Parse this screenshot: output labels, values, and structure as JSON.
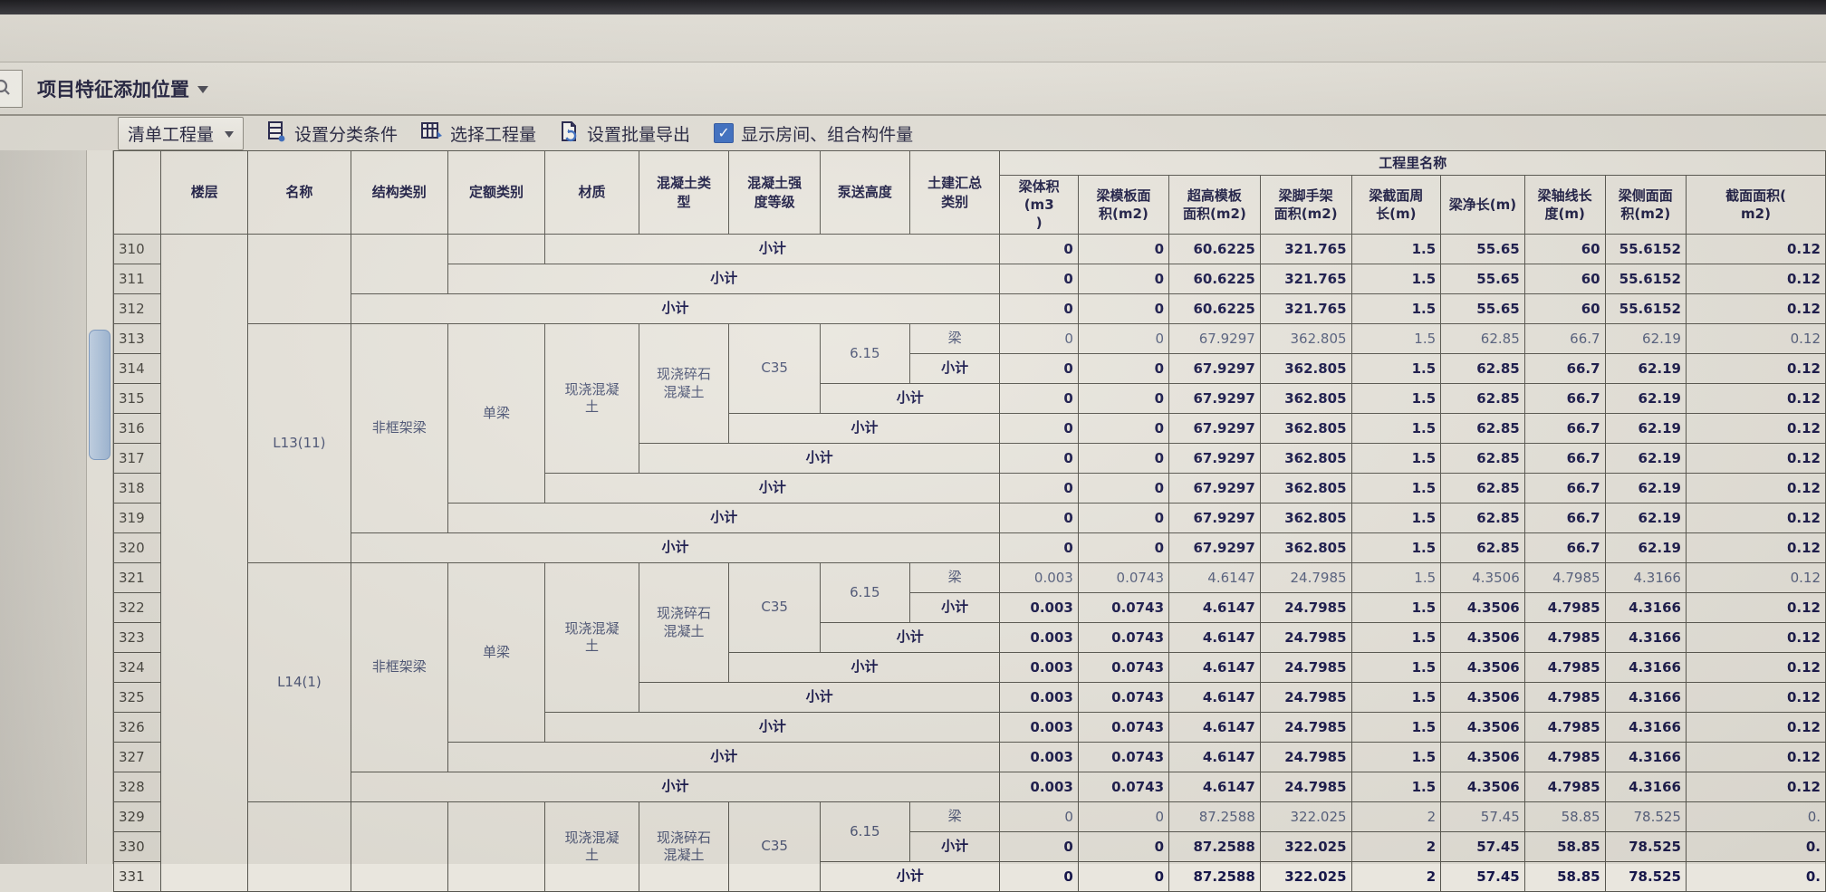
{
  "colors": {
    "accent_blue": "#3a6cc0",
    "text_navy": "#1b1b4e"
  },
  "top_bar": {
    "feature_dropdown_label": "项目特征添加位置"
  },
  "toolbar": {
    "quantity_type_button": "清单工程量",
    "set_classify_button": "设置分类条件",
    "select_quantity_button": "选择工程量",
    "batch_export_button": "设置批量导出",
    "show_rooms_checkbox_label": "显示房间、组合构件量",
    "show_rooms_checked": true,
    "check_glyph": "✓"
  },
  "table": {
    "group_header": "工程里名称",
    "columns": [
      "楼层",
      "名称",
      "结构类别",
      "定额类别",
      "材质",
      "混凝土类\n型",
      "混凝土强\n度等级",
      "泵送高度",
      "土建汇总\n类别",
      "梁体积(m3\n)",
      "梁模板面\n积(m2)",
      "超高模板\n面积(m2)",
      "梁脚手架\n面积(m2)",
      "梁截面周\n长(m)",
      "梁净长(m)",
      "梁轴线长\n度(m)",
      "梁侧面面\n积(m2)",
      "截面面积(\nm2)"
    ],
    "rows": [
      {
        "num": "310",
        "v": "bold",
        "cells": [
          {
            "c": 0,
            "rs": 22,
            "t": ""
          },
          {
            "c": 1,
            "rs": 3,
            "t": ""
          },
          {
            "c": 2,
            "rs": 2,
            "t": ""
          },
          {
            "c": 3,
            "t": ""
          },
          {
            "c": 4,
            "cs": 5,
            "t": "小计"
          }
        ],
        "values": [
          "0",
          "0",
          "60.6225",
          "321.765",
          "1.5",
          "55.65",
          "60",
          "55.6152",
          "0.12"
        ]
      },
      {
        "num": "311",
        "v": "bold",
        "cells": [
          {
            "c": 3,
            "cs": 6,
            "t": "小计"
          }
        ],
        "values": [
          "0",
          "0",
          "60.6225",
          "321.765",
          "1.5",
          "55.65",
          "60",
          "55.6152",
          "0.12"
        ]
      },
      {
        "num": "312",
        "v": "bold",
        "cells": [
          {
            "c": 2,
            "cs": 7,
            "t": "小计"
          }
        ],
        "values": [
          "0",
          "0",
          "60.6225",
          "321.765",
          "1.5",
          "55.65",
          "60",
          "55.6152",
          "0.12"
        ]
      },
      {
        "num": "313",
        "v": "light",
        "cells": [
          {
            "c": 1,
            "rs": 8,
            "t": "L13(11)"
          },
          {
            "c": 2,
            "rs": 7,
            "t": "非框架梁"
          },
          {
            "c": 3,
            "rs": 6,
            "t": "单梁"
          },
          {
            "c": 4,
            "rs": 5,
            "t": "现浇混凝\n土"
          },
          {
            "c": 5,
            "rs": 4,
            "t": "现浇碎石\n混凝土"
          },
          {
            "c": 6,
            "rs": 3,
            "t": "C35"
          },
          {
            "c": 7,
            "rs": 2,
            "t": "6.15"
          },
          {
            "c": 8,
            "t": "梁"
          }
        ],
        "values": [
          "0",
          "0",
          "67.9297",
          "362.805",
          "1.5",
          "62.85",
          "66.7",
          "62.19",
          "0.12"
        ]
      },
      {
        "num": "314",
        "v": "bold",
        "cells": [
          {
            "c": 8,
            "t": "小计"
          }
        ],
        "values": [
          "0",
          "0",
          "67.9297",
          "362.805",
          "1.5",
          "62.85",
          "66.7",
          "62.19",
          "0.12"
        ]
      },
      {
        "num": "315",
        "v": "bold",
        "cells": [
          {
            "c": 7,
            "cs": 2,
            "t": "小计"
          }
        ],
        "values": [
          "0",
          "0",
          "67.9297",
          "362.805",
          "1.5",
          "62.85",
          "66.7",
          "62.19",
          "0.12"
        ]
      },
      {
        "num": "316",
        "v": "bold",
        "cells": [
          {
            "c": 6,
            "cs": 3,
            "t": "小计"
          }
        ],
        "values": [
          "0",
          "0",
          "67.9297",
          "362.805",
          "1.5",
          "62.85",
          "66.7",
          "62.19",
          "0.12"
        ]
      },
      {
        "num": "317",
        "v": "bold",
        "cells": [
          {
            "c": 5,
            "cs": 4,
            "t": "小计"
          }
        ],
        "values": [
          "0",
          "0",
          "67.9297",
          "362.805",
          "1.5",
          "62.85",
          "66.7",
          "62.19",
          "0.12"
        ]
      },
      {
        "num": "318",
        "v": "bold",
        "cells": [
          {
            "c": 4,
            "cs": 5,
            "t": "小计"
          }
        ],
        "values": [
          "0",
          "0",
          "67.9297",
          "362.805",
          "1.5",
          "62.85",
          "66.7",
          "62.19",
          "0.12"
        ]
      },
      {
        "num": "319",
        "v": "bold",
        "cells": [
          {
            "c": 3,
            "cs": 6,
            "t": "小计"
          }
        ],
        "values": [
          "0",
          "0",
          "67.9297",
          "362.805",
          "1.5",
          "62.85",
          "66.7",
          "62.19",
          "0.12"
        ]
      },
      {
        "num": "320",
        "v": "bold",
        "cells": [
          {
            "c": 2,
            "cs": 7,
            "t": "小计"
          }
        ],
        "values": [
          "0",
          "0",
          "67.9297",
          "362.805",
          "1.5",
          "62.85",
          "66.7",
          "62.19",
          "0.12"
        ]
      },
      {
        "num": "321",
        "v": "light",
        "cells": [
          {
            "c": 1,
            "rs": 8,
            "t": "L14(1)"
          },
          {
            "c": 2,
            "rs": 7,
            "t": "非框架梁"
          },
          {
            "c": 3,
            "rs": 6,
            "t": "单梁"
          },
          {
            "c": 4,
            "rs": 5,
            "t": "现浇混凝\n土"
          },
          {
            "c": 5,
            "rs": 4,
            "t": "现浇碎石\n混凝土"
          },
          {
            "c": 6,
            "rs": 3,
            "t": "C35"
          },
          {
            "c": 7,
            "rs": 2,
            "t": "6.15"
          },
          {
            "c": 8,
            "t": "梁"
          }
        ],
        "values": [
          "0.003",
          "0.0743",
          "4.6147",
          "24.7985",
          "1.5",
          "4.3506",
          "4.7985",
          "4.3166",
          "0.12"
        ]
      },
      {
        "num": "322",
        "v": "bold",
        "cells": [
          {
            "c": 8,
            "t": "小计"
          }
        ],
        "values": [
          "0.003",
          "0.0743",
          "4.6147",
          "24.7985",
          "1.5",
          "4.3506",
          "4.7985",
          "4.3166",
          "0.12"
        ]
      },
      {
        "num": "323",
        "v": "bold",
        "cells": [
          {
            "c": 7,
            "cs": 2,
            "t": "小计"
          }
        ],
        "values": [
          "0.003",
          "0.0743",
          "4.6147",
          "24.7985",
          "1.5",
          "4.3506",
          "4.7985",
          "4.3166",
          "0.12"
        ]
      },
      {
        "num": "324",
        "v": "bold",
        "cells": [
          {
            "c": 6,
            "cs": 3,
            "t": "小计"
          }
        ],
        "values": [
          "0.003",
          "0.0743",
          "4.6147",
          "24.7985",
          "1.5",
          "4.3506",
          "4.7985",
          "4.3166",
          "0.12"
        ]
      },
      {
        "num": "325",
        "v": "bold",
        "cells": [
          {
            "c": 5,
            "cs": 4,
            "t": "小计"
          }
        ],
        "values": [
          "0.003",
          "0.0743",
          "4.6147",
          "24.7985",
          "1.5",
          "4.3506",
          "4.7985",
          "4.3166",
          "0.12"
        ]
      },
      {
        "num": "326",
        "v": "bold",
        "cells": [
          {
            "c": 4,
            "cs": 5,
            "t": "小计"
          }
        ],
        "values": [
          "0.003",
          "0.0743",
          "4.6147",
          "24.7985",
          "1.5",
          "4.3506",
          "4.7985",
          "4.3166",
          "0.12"
        ]
      },
      {
        "num": "327",
        "v": "bold",
        "cells": [
          {
            "c": 3,
            "cs": 6,
            "t": "小计"
          }
        ],
        "values": [
          "0.003",
          "0.0743",
          "4.6147",
          "24.7985",
          "1.5",
          "4.3506",
          "4.7985",
          "4.3166",
          "0.12"
        ]
      },
      {
        "num": "328",
        "v": "bold",
        "cells": [
          {
            "c": 2,
            "cs": 7,
            "t": "小计"
          }
        ],
        "values": [
          "0.003",
          "0.0743",
          "4.6147",
          "24.7985",
          "1.5",
          "4.3506",
          "4.7985",
          "4.3166",
          "0.12"
        ]
      },
      {
        "num": "329",
        "v": "light",
        "cells": [
          {
            "c": 1,
            "rs": 3,
            "t": ""
          },
          {
            "c": 2,
            "rs": 3,
            "t": ""
          },
          {
            "c": 3,
            "rs": 3,
            "t": ""
          },
          {
            "c": 4,
            "rs": 3,
            "t": "现浇混凝\n土"
          },
          {
            "c": 5,
            "rs": 3,
            "t": "现浇碎石\n混凝土"
          },
          {
            "c": 6,
            "rs": 3,
            "t": "C35"
          },
          {
            "c": 7,
            "rs": 2,
            "t": "6.15"
          },
          {
            "c": 8,
            "t": "梁"
          }
        ],
        "values": [
          "0",
          "0",
          "87.2588",
          "322.025",
          "2",
          "57.45",
          "58.85",
          "78.525",
          "0."
        ]
      },
      {
        "num": "330",
        "v": "bold",
        "cells": [
          {
            "c": 8,
            "t": "小计"
          }
        ],
        "values": [
          "0",
          "0",
          "87.2588",
          "322.025",
          "2",
          "57.45",
          "58.85",
          "78.525",
          "0."
        ]
      },
      {
        "num": "331",
        "v": "bold",
        "cells": [
          {
            "c": 7,
            "cs": 2,
            "t": "小计"
          }
        ],
        "values": [
          "0",
          "0",
          "87.2588",
          "322.025",
          "2",
          "57.45",
          "58.85",
          "78.525",
          "0."
        ]
      }
    ]
  }
}
